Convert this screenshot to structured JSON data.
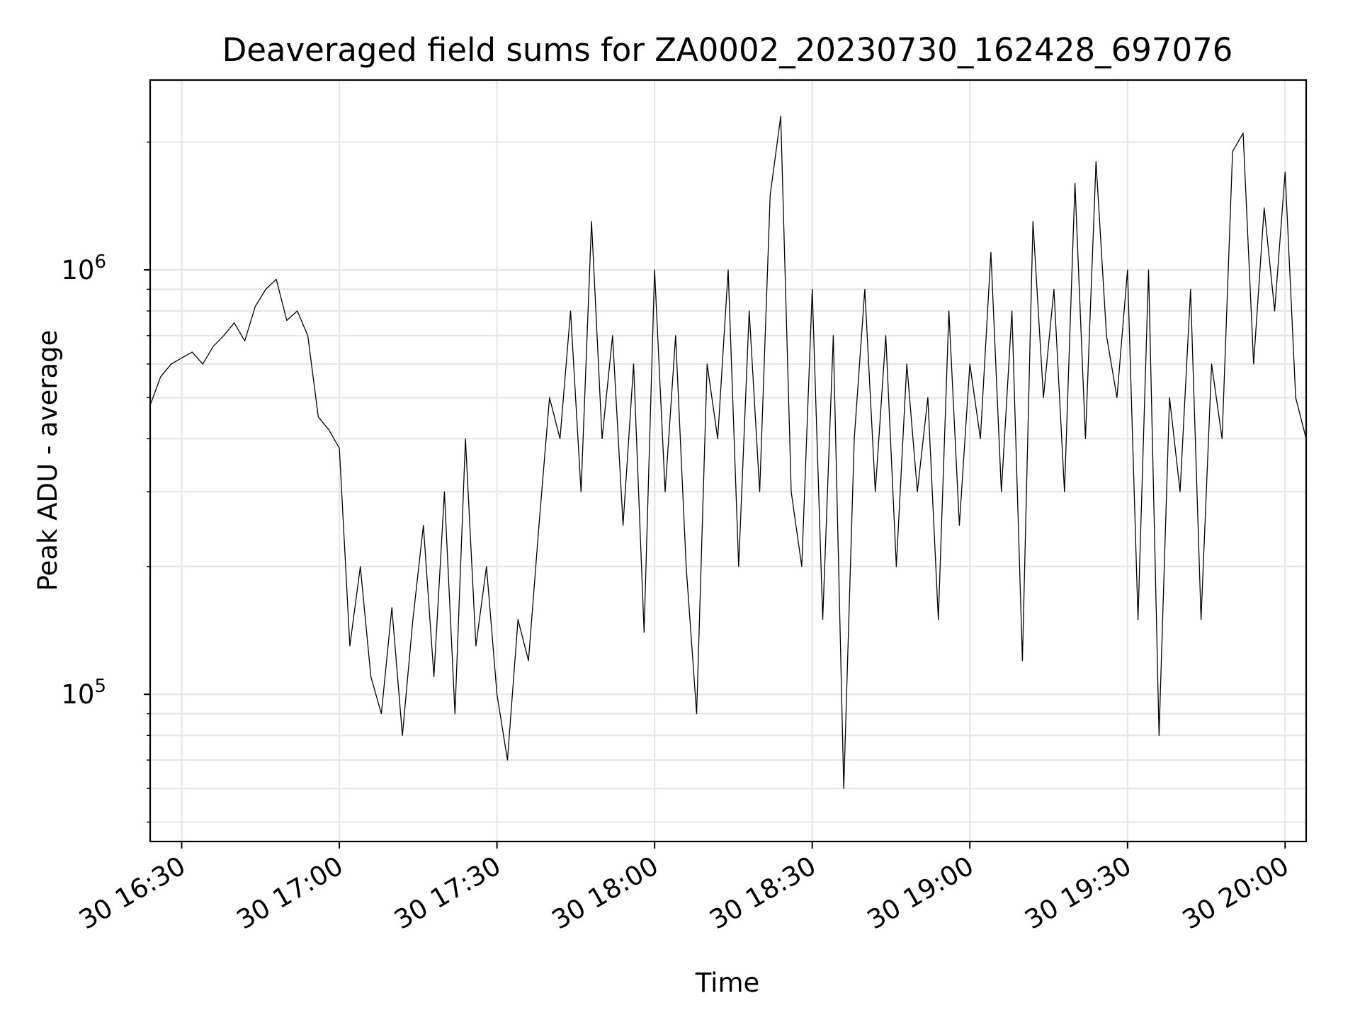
{
  "chart_data": {
    "type": "line",
    "title": "Deaveraged field sums for ZA0002_20230730_162428_697076",
    "xlabel": "Time",
    "ylabel": "Peak ADU - average",
    "yscale": "log",
    "ylim": [
      45000,
      2800000
    ],
    "xlim": [
      "2023-07-30 16:24",
      "2023-07-30 20:04"
    ],
    "x_ticks": [
      "30 16:30",
      "30 17:00",
      "30 17:30",
      "30 18:00",
      "30 18:30",
      "30 19:00",
      "30 19:30",
      "30 20:00"
    ],
    "y_ticks": [
      {
        "mantissa": "10",
        "exponent": "5"
      },
      {
        "mantissa": "10",
        "exponent": "6"
      }
    ],
    "grid": true,
    "line_color": "#000000",
    "x": [
      "16:24",
      "16:26",
      "16:28",
      "16:30",
      "16:32",
      "16:34",
      "16:36",
      "16:38",
      "16:40",
      "16:42",
      "16:44",
      "16:46",
      "16:48",
      "16:50",
      "16:52",
      "16:54",
      "16:56",
      "16:58",
      "17:00",
      "17:02",
      "17:04",
      "17:06",
      "17:08",
      "17:10",
      "17:12",
      "17:14",
      "17:16",
      "17:18",
      "17:20",
      "17:22",
      "17:24",
      "17:26",
      "17:28",
      "17:30",
      "17:32",
      "17:34",
      "17:36",
      "17:38",
      "17:40",
      "17:42",
      "17:44",
      "17:46",
      "17:48",
      "17:50",
      "17:52",
      "17:54",
      "17:56",
      "17:58",
      "18:00",
      "18:02",
      "18:04",
      "18:06",
      "18:08",
      "18:10",
      "18:12",
      "18:14",
      "18:16",
      "18:18",
      "18:20",
      "18:22",
      "18:24",
      "18:26",
      "18:28",
      "18:30",
      "18:32",
      "18:34",
      "18:36",
      "18:38",
      "18:40",
      "18:42",
      "18:44",
      "18:46",
      "18:48",
      "18:50",
      "18:52",
      "18:54",
      "18:56",
      "18:58",
      "19:00",
      "19:02",
      "19:04",
      "19:06",
      "19:08",
      "19:10",
      "19:12",
      "19:14",
      "19:16",
      "19:18",
      "19:20",
      "19:22",
      "19:24",
      "19:26",
      "19:28",
      "19:30",
      "19:32",
      "19:34",
      "19:36",
      "19:38",
      "19:40",
      "19:42",
      "19:44",
      "19:46",
      "19:48",
      "19:50",
      "19:52",
      "19:54",
      "19:56",
      "19:58",
      "20:00",
      "20:02",
      "20:04"
    ],
    "values": [
      480000,
      560000,
      600000,
      620000,
      640000,
      600000,
      660000,
      700000,
      750000,
      680000,
      820000,
      900000,
      950000,
      760000,
      800000,
      700000,
      450000,
      420000,
      380000,
      130000,
      200000,
      110000,
      90000,
      160000,
      80000,
      150000,
      250000,
      110000,
      300000,
      90000,
      400000,
      130000,
      200000,
      100000,
      70000,
      150000,
      120000,
      250000,
      500000,
      400000,
      800000,
      300000,
      1300000,
      400000,
      700000,
      250000,
      600000,
      140000,
      1000000,
      300000,
      700000,
      200000,
      90000,
      600000,
      400000,
      1000000,
      200000,
      800000,
      300000,
      1500000,
      2300000,
      300000,
      200000,
      900000,
      150000,
      700000,
      60000,
      400000,
      900000,
      300000,
      700000,
      200000,
      600000,
      300000,
      500000,
      150000,
      800000,
      250000,
      600000,
      400000,
      1100000,
      300000,
      800000,
      120000,
      1300000,
      500000,
      900000,
      300000,
      1600000,
      400000,
      1800000,
      700000,
      500000,
      1000000,
      150000,
      1000000,
      80000,
      500000,
      300000,
      900000,
      150000,
      600000,
      400000,
      1900000,
      2100000,
      600000,
      1400000,
      800000,
      1700000,
      500000,
      400000
    ]
  }
}
